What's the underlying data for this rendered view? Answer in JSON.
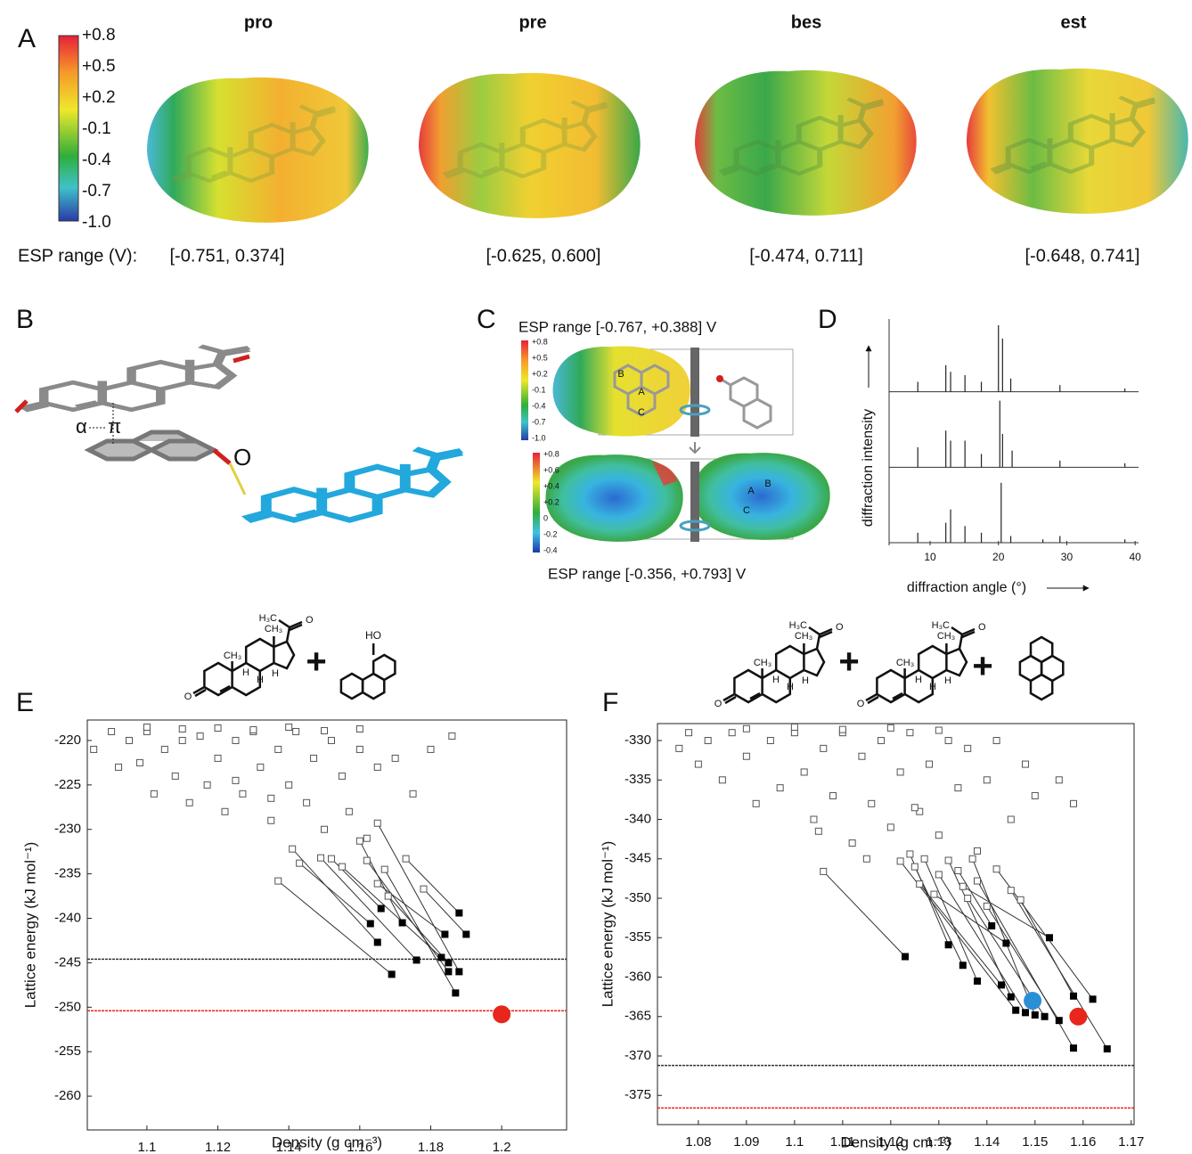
{
  "panels": {
    "A": {
      "label": "A",
      "colorbar": [
        "+0.8",
        "+0.5",
        "+0.2",
        "-0.1",
        "-0.4",
        "-0.7",
        "-1.0"
      ],
      "molecules": [
        "pro",
        "pre",
        "bes",
        "est"
      ],
      "range_label": "ESP range (V):",
      "ranges": [
        "[-0.751, 0.374]",
        "[-0.625, 0.600]",
        "[-0.474, 0.711]",
        "[-0.648, 0.741]"
      ]
    },
    "B": {
      "label": "B",
      "alpha": "α",
      "pi": "π",
      "atom": "O"
    },
    "C": {
      "label": "C",
      "range_top": "ESP range [-0.767, +0.388] V",
      "colorbar_top": [
        "+0.8",
        "+0.5",
        "+0.2",
        "-0.1",
        "-0.4",
        "-0.7",
        "-1.0"
      ],
      "rings_top": [
        "B",
        "A",
        "C"
      ],
      "colorbar_bottom": [
        "+0.8",
        "+0.6",
        "+0.4",
        "+0.2",
        "0",
        "-0.2",
        "-0.4"
      ],
      "rings_bottom": [
        "A",
        "B",
        "C"
      ],
      "range_bottom": "ESP range [-0.356, +0.793] V"
    },
    "D": {
      "label": "D"
    },
    "E": {
      "label": "E",
      "steroid": [
        "H₃C",
        "CH₃",
        "CH₃",
        "H",
        "H",
        "H",
        "O",
        "O"
      ],
      "plus": "+",
      "phenol": "HO"
    },
    "F": {
      "label": "F",
      "steroids": [
        [
          "H₃C",
          "CH₃",
          "CH₃",
          "H",
          "H",
          "H",
          "O",
          "O"
        ],
        [
          "H₃C",
          "CH₃",
          "CH₃",
          "H",
          "H",
          "H",
          "O",
          "O"
        ]
      ],
      "plus": [
        "+",
        "+"
      ]
    }
  },
  "chart_data": [
    {
      "type": "spectrum",
      "xlabel": "diffraction angle (°)",
      "ylabel": "diffraction intensity",
      "xlim": [
        4,
        40.5
      ],
      "xticks": [
        10,
        20,
        30,
        40
      ],
      "series": [
        {
          "color": "#222",
          "x": [
            8.2,
            12.3,
            13.0,
            15.1,
            17.5,
            20.0,
            20.6,
            21.8,
            29.0,
            38.5
          ],
          "values": [
            0.15,
            0.4,
            0.3,
            0.25,
            0.15,
            1.0,
            0.8,
            0.2,
            0.1,
            0.05
          ]
        },
        {
          "color": "#222",
          "x": [
            8.2,
            12.3,
            13.0,
            15.1,
            17.5,
            20.2,
            20.6,
            22.0,
            29.0,
            38.5
          ],
          "values": [
            0.3,
            0.55,
            0.4,
            0.4,
            0.2,
            1.0,
            0.5,
            0.25,
            0.1,
            0.06
          ]
        },
        {
          "color": "#222",
          "x": [
            8.2,
            12.3,
            13.0,
            15.1,
            17.5,
            20.4,
            21.8,
            26.5,
            29.0,
            38.5
          ],
          "values": [
            0.15,
            0.3,
            0.5,
            0.25,
            0.15,
            0.9,
            0.1,
            0.05,
            0.1,
            0.05
          ]
        }
      ]
    },
    {
      "type": "scatter",
      "xlabel": "Density (g cm⁻³)",
      "ylabel": "Lattice energy (kJ mol⁻¹)",
      "xlim": [
        1.0832,
        1.2183
      ],
      "ylim": [
        -263.8,
        -217.7
      ],
      "xticks": [
        1.1,
        1.12,
        1.14,
        1.16,
        1.18,
        1.2
      ],
      "yticks": [
        -220,
        -225,
        -230,
        -235,
        -240,
        -245,
        -250,
        -255,
        -260
      ],
      "hlines": [
        {
          "value": -244.6,
          "color": "#333"
        },
        {
          "value": -250.4,
          "color": "#e8261c"
        }
      ],
      "series": [
        {
          "marker": "open-square",
          "color": "#555",
          "x": [
            1.085,
            1.09,
            1.092,
            1.095,
            1.098,
            1.1,
            1.102,
            1.105,
            1.108,
            1.11,
            1.112,
            1.115,
            1.117,
            1.12,
            1.122,
            1.125,
            1.127,
            1.13,
            1.132,
            1.135,
            1.137,
            1.14,
            1.142,
            1.145,
            1.147,
            1.15,
            1.152,
            1.155,
            1.157,
            1.16,
            1.162,
            1.165,
            1.17,
            1.175,
            1.18,
            1.186,
            1.1,
            1.11,
            1.12,
            1.13,
            1.14,
            1.15,
            1.16,
            1.125,
            1.135
          ],
          "values": [
            -221,
            -219,
            -223,
            -220,
            -222.5,
            -219,
            -226,
            -221,
            -224,
            -220,
            -227,
            -219.5,
            -225,
            -222,
            -228,
            -220,
            -226,
            -219,
            -223,
            -229,
            -221,
            -225,
            -219,
            -227,
            -222,
            -230,
            -220,
            -224,
            -228,
            -221,
            -231,
            -223,
            -222,
            -226,
            -221,
            -219.5,
            -218.5,
            -218.7,
            -218.6,
            -218.8,
            -218.5,
            -218.9,
            -218.7,
            -224.5,
            -226.5
          ]
        },
        {
          "marker": "open-square",
          "color": "#555",
          "x": [
            1.137,
            1.141,
            1.143,
            1.149,
            1.152,
            1.155,
            1.16,
            1.162,
            1.165,
            1.167,
            1.168,
            1.173,
            1.178,
            1.165
          ],
          "values": [
            -235.8,
            -232.2,
            -233.8,
            -233.2,
            -233.3,
            -234.2,
            -231.3,
            -233.5,
            -236.1,
            -234.5,
            -237.5,
            -233.3,
            -236.7,
            -229.3
          ],
          "minimized_x": [
            1.169,
            1.165,
            1.163,
            1.176,
            1.166,
            1.183,
            1.172,
            1.185,
            1.184,
            1.187,
            1.185,
            1.188,
            1.19,
            1.188
          ],
          "minimized_values": [
            -246.3,
            -242.7,
            -240.6,
            -244.7,
            -238.9,
            -244.4,
            -240.5,
            -246.0,
            -241.8,
            -248.4,
            -245.0,
            -239.4,
            -241.8,
            -246.0
          ]
        },
        {
          "marker": "circle",
          "color": "#e8261c",
          "x": [
            1.2
          ],
          "values": [
            -250.8
          ]
        }
      ]
    },
    {
      "type": "scatter",
      "xlabel": "Density (g cm⁻³)",
      "ylabel": "Lattice energy (kJ mol⁻¹)",
      "xlim": [
        1.0715,
        1.1706
      ],
      "ylim": [
        -378.7,
        -327.85
      ],
      "xticks": [
        1.08,
        1.09,
        1.1,
        1.11,
        1.12,
        1.13,
        1.14,
        1.15,
        1.16,
        1.17
      ],
      "yticks": [
        -330,
        -335,
        -340,
        -345,
        -350,
        -355,
        -360,
        -365,
        -370,
        -375
      ],
      "hlines": [
        {
          "value": -371.2,
          "color": "#333"
        },
        {
          "value": -376.6,
          "color": "#e8261c"
        }
      ],
      "series": [
        {
          "marker": "open-square",
          "color": "#555",
          "x": [
            1.076,
            1.078,
            1.08,
            1.082,
            1.085,
            1.087,
            1.09,
            1.092,
            1.095,
            1.097,
            1.1,
            1.102,
            1.104,
            1.106,
            1.108,
            1.11,
            1.112,
            1.114,
            1.116,
            1.118,
            1.12,
            1.122,
            1.124,
            1.126,
            1.128,
            1.13,
            1.132,
            1.134,
            1.136,
            1.138,
            1.14,
            1.142,
            1.145,
            1.148,
            1.15,
            1.155,
            1.158,
            1.09,
            1.1,
            1.11,
            1.12,
            1.13,
            1.105,
            1.115,
            1.125
          ],
          "values": [
            -331,
            -329,
            -333,
            -330,
            -335,
            -329,
            -332,
            -338,
            -330,
            -336,
            -329,
            -334,
            -340,
            -331,
            -337,
            -329,
            -343,
            -332,
            -338,
            -330,
            -341,
            -334,
            -329,
            -339,
            -333,
            -342,
            -330,
            -336,
            -331,
            -344,
            -335,
            -330,
            -340,
            -333,
            -337,
            -335,
            -338,
            -328.5,
            -328.3,
            -328.6,
            -328.4,
            -328.7,
            -341.5,
            -345,
            -338.5
          ]
        },
        {
          "marker": "open-square",
          "color": "#555",
          "x": [
            1.106,
            1.122,
            1.124,
            1.125,
            1.126,
            1.127,
            1.129,
            1.13,
            1.132,
            1.134,
            1.136,
            1.137,
            1.138,
            1.14,
            1.142,
            1.145,
            1.147,
            1.135
          ],
          "values": [
            -346.6,
            -345.3,
            -344.4,
            -346.0,
            -348.2,
            -345.0,
            -349.5,
            -347.0,
            -345.2,
            -346.5,
            -350.0,
            -345.0,
            -347.8,
            -351.0,
            -346.3,
            -349.0,
            -350.2,
            -348.5
          ],
          "minimized_x": [
            1.123,
            1.146,
            1.132,
            1.135,
            1.143,
            1.138,
            1.144,
            1.148,
            1.145,
            1.141,
            1.152,
            1.15,
            1.158,
            1.155,
            1.162,
            1.165,
            1.158,
            1.153
          ],
          "minimized_values": [
            -357.4,
            -364.2,
            -355.9,
            -358.5,
            -361.0,
            -360.5,
            -355.7,
            -364.5,
            -362.5,
            -353.5,
            -365.0,
            -364.8,
            -369.0,
            -365.5,
            -362.8,
            -369.1,
            -362.4,
            -355.0
          ]
        },
        {
          "marker": "circle",
          "color": "#2b8fd6",
          "x": [
            1.1495
          ],
          "values": [
            -363
          ]
        },
        {
          "marker": "circle",
          "color": "#e8261c",
          "x": [
            1.159
          ],
          "values": [
            -365
          ]
        }
      ]
    }
  ]
}
